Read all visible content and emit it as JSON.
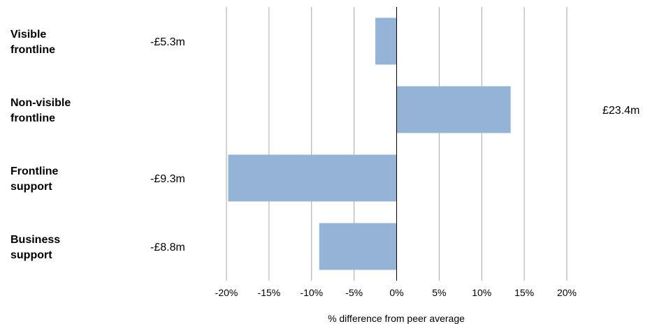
{
  "chart_data": {
    "type": "bar",
    "orientation": "horizontal",
    "categories": [
      "Visible\nfrontline",
      "Non-visible\nfrontline",
      "Frontline\nsupport",
      "Business\nsupport"
    ],
    "values": [
      -2.5,
      13.4,
      -19.8,
      -9.1
    ],
    "value_labels": [
      "-£5.3m",
      "£23.4m",
      "-£9.3m",
      "-£8.8m"
    ],
    "xlabel": "% difference from peer average",
    "xlim": [
      -20,
      20
    ],
    "xticks": [
      -20,
      -15,
      -10,
      -5,
      0,
      5,
      10,
      15,
      20
    ],
    "xtick_labels": [
      "-20%",
      "-15%",
      "-10%",
      "-5%",
      "0%",
      "5%",
      "10%",
      "15%",
      "20%"
    ],
    "grid": true,
    "colors": {
      "bar": "#95b3d7",
      "grid": "#a6a6a6",
      "axis": "#000000"
    }
  }
}
